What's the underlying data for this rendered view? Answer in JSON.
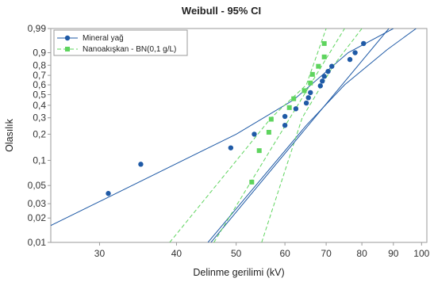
{
  "chart_data": {
    "type": "scatter",
    "title": "Weibull - 95% CI",
    "xlabel": "Delinme gerilimi (kV)",
    "ylabel": "Olasılık",
    "x_scale": "log",
    "y_scale": "weibull",
    "xlim": [
      25,
      102
    ],
    "ylim": [
      0.01,
      0.99
    ],
    "x_ticks": [
      30,
      40,
      50,
      60,
      70,
      80,
      90,
      100
    ],
    "y_ticks": [
      0.01,
      0.02,
      0.03,
      0.05,
      0.1,
      0.2,
      0.3,
      0.4,
      0.5,
      0.6,
      0.7,
      0.8,
      0.9,
      0.99
    ],
    "y_tick_labels": [
      "0,01",
      "0,02",
      "0,03",
      "0,05",
      "0,1",
      "0,2",
      "0,3",
      "0,4",
      "0,5",
      "0,6",
      "0,7",
      "0,8",
      "0,9",
      "0,99"
    ],
    "legend_position": "top-left",
    "grid": false,
    "series": [
      {
        "name": "Mineral yağ",
        "color": "#1f5aa6",
        "marker": "circle",
        "line_style": "solid",
        "points": [
          {
            "x": 31,
            "y": 0.04
          },
          {
            "x": 35,
            "y": 0.09
          },
          {
            "x": 49,
            "y": 0.14
          },
          {
            "x": 53.5,
            "y": 0.2
          },
          {
            "x": 60,
            "y": 0.25
          },
          {
            "x": 60,
            "y": 0.31
          },
          {
            "x": 62.5,
            "y": 0.37
          },
          {
            "x": 65,
            "y": 0.42
          },
          {
            "x": 65.5,
            "y": 0.47
          },
          {
            "x": 66,
            "y": 0.52
          },
          {
            "x": 68.5,
            "y": 0.59
          },
          {
            "x": 69,
            "y": 0.64
          },
          {
            "x": 69.5,
            "y": 0.69
          },
          {
            "x": 70.5,
            "y": 0.74
          },
          {
            "x": 71.5,
            "y": 0.79
          },
          {
            "x": 76.5,
            "y": 0.85
          },
          {
            "x": 78,
            "y": 0.9
          },
          {
            "x": 80.5,
            "y": 0.95
          }
        ],
        "fit_line": [
          {
            "x": 45.5,
            "y": 0.01
          },
          {
            "x": 88.5,
            "y": 0.99
          }
        ],
        "ci_lower": [
          {
            "x": 22,
            "y": 0.01
          },
          {
            "x": 50,
            "y": 0.2
          },
          {
            "x": 62,
            "y": 0.45
          },
          {
            "x": 76,
            "y": 0.9
          },
          {
            "x": 90,
            "y": 0.99
          }
        ],
        "ci_upper": [
          {
            "x": 45,
            "y": 0.01
          },
          {
            "x": 65,
            "y": 0.25
          },
          {
            "x": 75,
            "y": 0.6
          },
          {
            "x": 88,
            "y": 0.92
          },
          {
            "x": 98,
            "y": 0.99
          }
        ]
      },
      {
        "name": "Nanoakışkan - BN(0,1 g/L)",
        "color": "#5ed45e",
        "marker": "square",
        "line_style": "dashed",
        "points": [
          {
            "x": 53,
            "y": 0.055
          },
          {
            "x": 54.5,
            "y": 0.13
          },
          {
            "x": 56.5,
            "y": 0.21
          },
          {
            "x": 57,
            "y": 0.29
          },
          {
            "x": 61,
            "y": 0.38
          },
          {
            "x": 62,
            "y": 0.46
          },
          {
            "x": 64.5,
            "y": 0.54
          },
          {
            "x": 66,
            "y": 0.62
          },
          {
            "x": 66.5,
            "y": 0.71
          },
          {
            "x": 68,
            "y": 0.79
          },
          {
            "x": 69.5,
            "y": 0.87
          },
          {
            "x": 69.5,
            "y": 0.95
          }
        ],
        "fit_line": [
          {
            "x": 46,
            "y": 0.01
          },
          {
            "x": 75,
            "y": 0.99
          }
        ],
        "ci_lower": [
          {
            "x": 39,
            "y": 0.01
          },
          {
            "x": 57,
            "y": 0.3
          },
          {
            "x": 65,
            "y": 0.6
          },
          {
            "x": 70,
            "y": 0.99
          }
        ],
        "ci_upper": [
          {
            "x": 55,
            "y": 0.01
          },
          {
            "x": 64,
            "y": 0.3
          },
          {
            "x": 72,
            "y": 0.8
          },
          {
            "x": 80,
            "y": 0.99
          }
        ]
      }
    ]
  }
}
